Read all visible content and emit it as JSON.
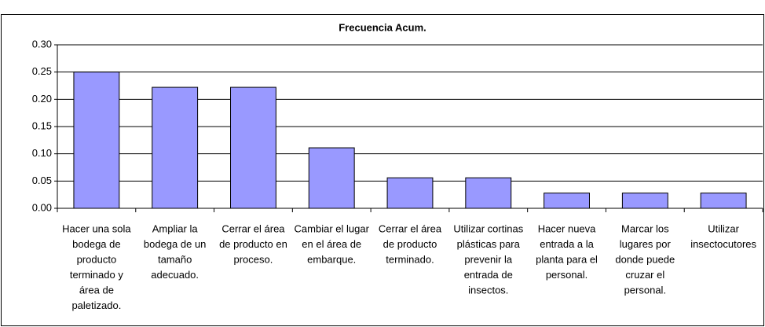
{
  "chart_data": {
    "type": "bar",
    "title": "Frecuencia Acum.",
    "categories": [
      [
        "Hacer una sola",
        "bodega de",
        "producto",
        "terminado y",
        "área de",
        "paletizado."
      ],
      [
        "Ampliar la",
        "bodega de un",
        "tamaño",
        "adecuado."
      ],
      [
        "Cerrar el área",
        "de producto en",
        "proceso."
      ],
      [
        "Cambiar el lugar",
        "en el área de",
        "embarque."
      ],
      [
        "Cerrar el área",
        "de producto",
        "terminado."
      ],
      [
        "Utilizar cortinas",
        "plásticas para",
        "prevenir la",
        "entrada de",
        "insectos."
      ],
      [
        "Hacer nueva",
        "entrada a la",
        "planta para el",
        "personal."
      ],
      [
        "Marcar los",
        "lugares por",
        "donde puede",
        "cruzar el",
        "personal."
      ],
      [
        "Utilizar",
        "insectocutores"
      ]
    ],
    "values": [
      0.25,
      0.222,
      0.222,
      0.111,
      0.056,
      0.056,
      0.028,
      0.028,
      0.028
    ],
    "color": "#9999ff",
    "ylim": [
      0,
      0.3
    ],
    "yticks": [
      {
        "value": 0,
        "label": "0.00"
      },
      0.05,
      {
        "value": 0.1,
        "label": "0.10"
      },
      0.15,
      {
        "value": 0.2,
        "label": "0.20"
      },
      0.25,
      {
        "value": 0.3,
        "label": "0.30"
      }
    ],
    "grid": true
  }
}
